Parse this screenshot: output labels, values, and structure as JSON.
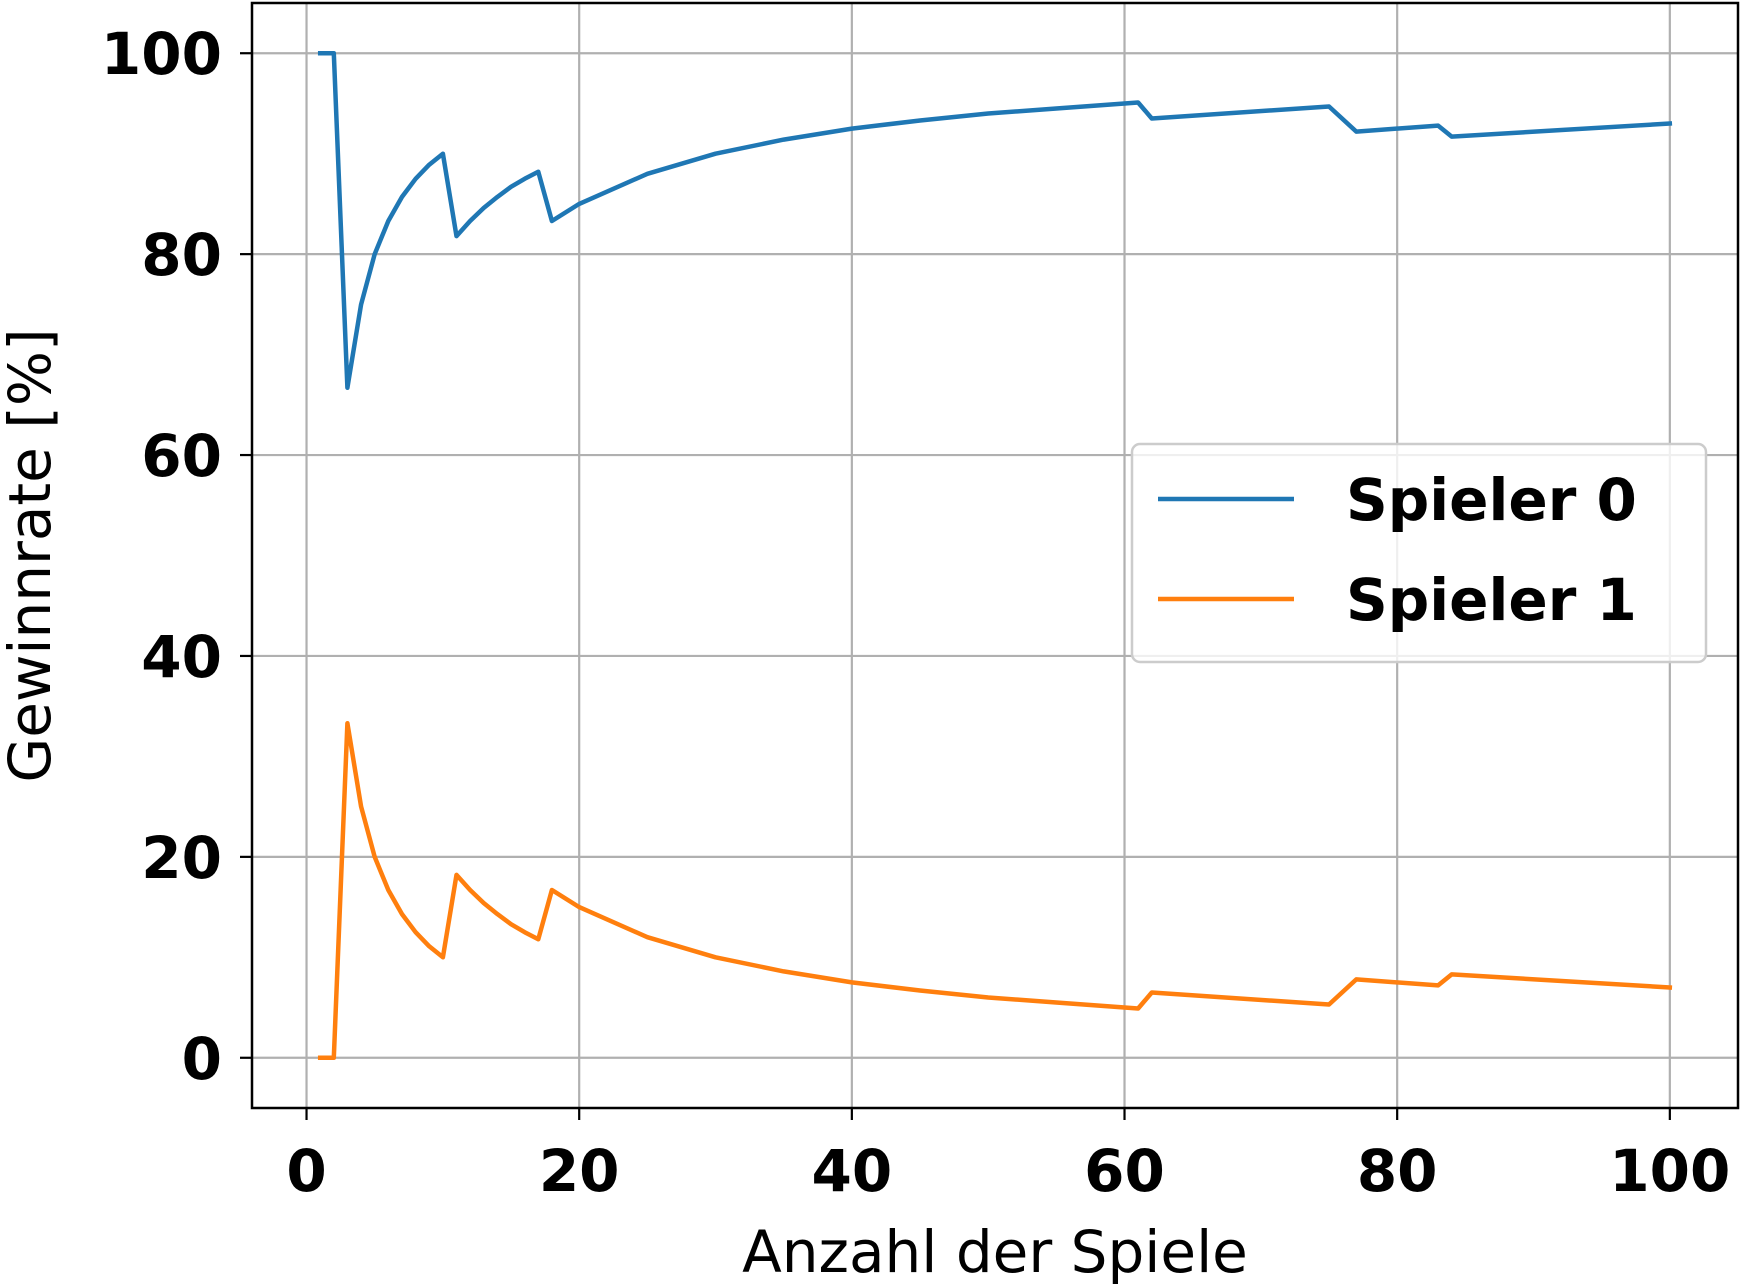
{
  "chart_data": {
    "type": "line",
    "xlabel": "Anzahl der Spiele",
    "ylabel": "Gewinnrate [%]",
    "xlim": [
      -4,
      105
    ],
    "ylim": [
      -5,
      105
    ],
    "xticks": [
      0,
      20,
      40,
      60,
      80,
      100
    ],
    "yticks": [
      0,
      20,
      40,
      60,
      80,
      100
    ],
    "grid": true,
    "legend_position": "center-right",
    "series": [
      {
        "name": "Spieler 0",
        "color": "#1f77b4",
        "x": [
          1,
          2,
          3,
          4,
          5,
          6,
          7,
          8,
          9,
          10,
          11,
          12,
          13,
          14,
          15,
          16,
          17,
          18,
          20,
          25,
          30,
          35,
          40,
          45,
          50,
          55,
          61,
          62,
          75,
          77,
          83,
          84,
          100
        ],
        "y": [
          100,
          100,
          66.7,
          75,
          80,
          83.3,
          85.7,
          87.5,
          88.9,
          90,
          81.8,
          83.3,
          84.6,
          85.7,
          86.7,
          87.5,
          88.2,
          83.3,
          85,
          88,
          90,
          91.4,
          92.5,
          93.3,
          94,
          94.5,
          95.1,
          93.5,
          94.7,
          92.2,
          92.8,
          91.7,
          93
        ]
      },
      {
        "name": "Spieler 1",
        "color": "#ff7f0e",
        "x": [
          1,
          2,
          3,
          4,
          5,
          6,
          7,
          8,
          9,
          10,
          11,
          12,
          13,
          14,
          15,
          16,
          17,
          18,
          20,
          25,
          30,
          35,
          40,
          45,
          50,
          55,
          61,
          62,
          75,
          77,
          83,
          84,
          100
        ],
        "y": [
          0,
          0,
          33.3,
          25,
          20,
          16.7,
          14.3,
          12.5,
          11.1,
          10,
          18.2,
          16.7,
          15.4,
          14.3,
          13.3,
          12.5,
          11.8,
          16.7,
          15,
          12,
          10,
          8.6,
          7.5,
          6.7,
          6,
          5.5,
          4.9,
          6.5,
          5.3,
          7.8,
          7.2,
          8.3,
          7
        ]
      }
    ]
  }
}
